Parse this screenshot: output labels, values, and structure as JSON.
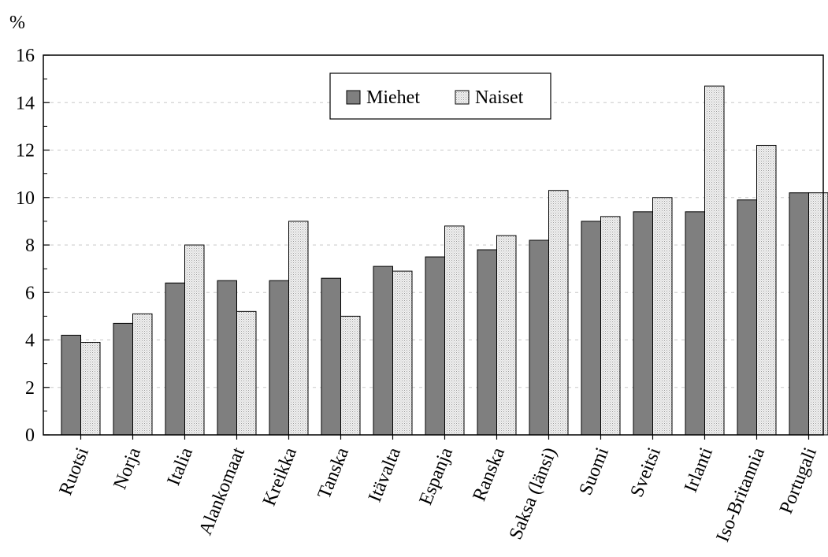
{
  "chart_data": {
    "type": "bar",
    "ylabel": "%",
    "ylim": [
      0,
      16
    ],
    "yticks": [
      0,
      2,
      4,
      6,
      8,
      10,
      12,
      14,
      16
    ],
    "ytick_labels": [
      "0",
      "2",
      "4",
      "6",
      "8",
      "10",
      "12",
      "14",
      "16"
    ],
    "grid": "horizontal dashed at major ticks",
    "legend_position": "top-center",
    "categories": [
      "Ruotsi",
      "Norja",
      "Italia",
      "Alankomaat",
      "Kreikka",
      "Tanska",
      "Itävalta",
      "Espanja",
      "Ranska",
      "Saksa (länsi)",
      "Suomi",
      "Sveitsi",
      "Irlanti",
      "Iso-Britannia",
      "Portugali"
    ],
    "series": [
      {
        "name": "Miehet",
        "color": "#7f7f7f",
        "values": [
          4.2,
          4.7,
          6.4,
          6.5,
          6.5,
          6.6,
          7.1,
          7.5,
          7.8,
          8.2,
          9.0,
          9.4,
          9.4,
          9.9,
          10.2
        ]
      },
      {
        "name": "Naiset",
        "color": "#e6e6e6",
        "values": [
          3.9,
          5.1,
          8.0,
          5.2,
          9.0,
          5.0,
          6.9,
          8.8,
          8.4,
          10.3,
          9.2,
          10.0,
          14.7,
          12.2,
          10.2
        ]
      }
    ]
  }
}
